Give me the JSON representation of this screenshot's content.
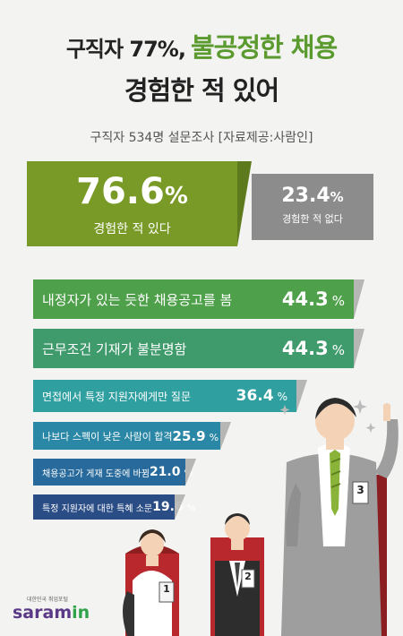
{
  "title": {
    "line1_part1": "구직자 77%,",
    "line1_part2": "불공정한 채용",
    "line2": "경험한 적 있어"
  },
  "subtitle": "구직자 534명 설문조사 [자료제공:사람인]",
  "summary": {
    "yes": {
      "value": "76.6",
      "unit": "%",
      "label": "경험한 적 있다"
    },
    "no": {
      "value": "23.4",
      "unit": "%",
      "label": "경험한 적 없다"
    }
  },
  "chart_data": {
    "type": "bar",
    "categories": [
      "내정자가 있는 듯한 채용공고를 봄",
      "근무조건 기재가 불분명함",
      "면접에서 특정 지원자에게만 질문",
      "나보다 스펙이 낮은 사람이 합격",
      "채용공고가 게재 도중에 바뀜",
      "특정 지원자에 대한 특혜 소문"
    ],
    "values": [
      44.3,
      44.3,
      36.4,
      25.9,
      21.0,
      19.6
    ],
    "value_labels": [
      "44.3",
      "44.3",
      "36.4",
      "25.9",
      "21.0",
      "19.6"
    ],
    "unit": "%",
    "colors": [
      "#4fa04a",
      "#3f9a6c",
      "#2f9fa0",
      "#2a87a6",
      "#276a9b",
      "#2b4d86"
    ],
    "pie": {
      "values": [
        76.6,
        23.4
      ],
      "labels": [
        "경험한 적 있다",
        "경험한 적 없다"
      ]
    }
  },
  "badges": [
    "1",
    "2",
    "3"
  ],
  "logo": {
    "tagline": "대한민국 취업포털",
    "name_main": "saram",
    "name_accent": "in"
  }
}
